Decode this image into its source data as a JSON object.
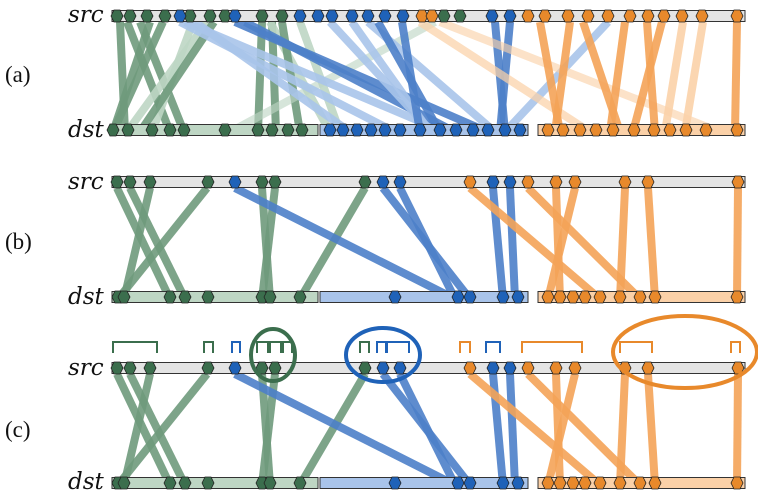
{
  "labels": {
    "src": "src",
    "dst": "dst"
  },
  "colors": {
    "green": "#6f9a7c",
    "green_light": "#bed6c4",
    "green_dark": "#3b6e4d",
    "blue": "#4d7fc9",
    "blue_light": "#a9c4ea",
    "blue_dark": "#1f62b8",
    "orange": "#f4a358",
    "orange_light": "#fbd1a8",
    "orange_dark": "#e8892b",
    "bar": "#e4e4e4",
    "outline": "#333333"
  },
  "panels": [
    {
      "label": "(a)",
      "links": [
        [
          "green",
          120,
          125,
          1
        ],
        [
          "green",
          127,
          170,
          1
        ],
        [
          "green",
          150,
          113,
          1
        ],
        [
          "green",
          140,
          184,
          1
        ],
        [
          "green_light",
          193,
          152,
          1
        ],
        [
          "green",
          163,
          113,
          1
        ],
        [
          "green_light",
          207,
          127,
          1
        ],
        [
          "green",
          214,
          140,
          1
        ],
        [
          "green",
          262,
          258,
          1
        ],
        [
          "green",
          272,
          276,
          1
        ],
        [
          "green_light",
          270,
          330,
          1
        ],
        [
          "green",
          282,
          300,
          1
        ],
        [
          "green_light",
          300,
          340,
          1
        ],
        [
          "green_light",
          435,
          230,
          0.7
        ],
        [
          "blue_light",
          180,
          395,
          1
        ],
        [
          "blue_light",
          185,
          445,
          1
        ],
        [
          "blue",
          235,
          488,
          1
        ],
        [
          "blue_light",
          195,
          350,
          1
        ],
        [
          "blue",
          245,
          455,
          1
        ],
        [
          "blue_light",
          330,
          432,
          1
        ],
        [
          "blue_light",
          352,
          430,
          1
        ],
        [
          "blue_light",
          368,
          495,
          1
        ],
        [
          "blue",
          378,
          440,
          1
        ],
        [
          "blue",
          402,
          420,
          1
        ],
        [
          "blue",
          495,
          505,
          1
        ],
        [
          "blue",
          510,
          500,
          1
        ],
        [
          "blue_light",
          608,
          505,
          1
        ],
        [
          "orange_light",
          420,
          590,
          0.8
        ],
        [
          "orange_light",
          440,
          720,
          0.7
        ],
        [
          "orange",
          540,
          560,
          1
        ],
        [
          "orange",
          570,
          555,
          1
        ],
        [
          "orange",
          583,
          620,
          1
        ],
        [
          "orange",
          625,
          610,
          1
        ],
        [
          "orange",
          647,
          655,
          1
        ],
        [
          "orange",
          662,
          633,
          1
        ],
        [
          "orange_light",
          683,
          665,
          1
        ],
        [
          "orange_light",
          703,
          685,
          1
        ],
        [
          "orange",
          737,
          735,
          1
        ]
      ],
      "src_markers": [
        [
          "green",
          117
        ],
        [
          "green",
          130
        ],
        [
          "green",
          147
        ],
        [
          "green",
          165
        ],
        [
          "green",
          190
        ],
        [
          "green",
          210
        ],
        [
          "green",
          225
        ],
        [
          "green",
          262
        ],
        [
          "green",
          282
        ],
        [
          "blue",
          180
        ],
        [
          "blue",
          235
        ],
        [
          "blue",
          300
        ],
        [
          "blue",
          318
        ],
        [
          "blue",
          332
        ],
        [
          "blue",
          352
        ],
        [
          "blue",
          368
        ],
        [
          "blue",
          385
        ],
        [
          "blue",
          403
        ],
        [
          "orange",
          422
        ],
        [
          "orange",
          432
        ],
        [
          "green",
          444
        ],
        [
          "green",
          460
        ],
        [
          "blue",
          492
        ],
        [
          "blue",
          510
        ],
        [
          "orange",
          528
        ],
        [
          "orange",
          545
        ],
        [
          "orange",
          568
        ],
        [
          "orange",
          588
        ],
        [
          "orange",
          608
        ],
        [
          "orange",
          630
        ],
        [
          "orange",
          648
        ],
        [
          "orange",
          664
        ],
        [
          "orange",
          682
        ],
        [
          "orange",
          702
        ],
        [
          "orange",
          737
        ]
      ],
      "dst_segments": [
        [
          "green_light",
          112,
          318
        ],
        [
          "blue_light",
          320,
          528
        ],
        [
          "orange_light",
          538,
          745
        ]
      ],
      "dst_markers": [
        [
          "green",
          113
        ],
        [
          "green",
          128
        ],
        [
          "green",
          152
        ],
        [
          "green",
          170
        ],
        [
          "green",
          184
        ],
        [
          "green",
          225
        ],
        [
          "green",
          258
        ],
        [
          "green",
          272
        ],
        [
          "green",
          288
        ],
        [
          "green",
          302
        ],
        [
          "blue",
          330
        ],
        [
          "blue",
          343
        ],
        [
          "blue",
          357
        ],
        [
          "blue",
          371
        ],
        [
          "blue",
          385
        ],
        [
          "blue",
          400
        ],
        [
          "blue",
          420
        ],
        [
          "blue",
          440
        ],
        [
          "blue",
          456
        ],
        [
          "blue",
          473
        ],
        [
          "blue",
          488
        ],
        [
          "blue",
          505
        ],
        [
          "blue",
          520
        ],
        [
          "orange",
          548
        ],
        [
          "orange",
          563
        ],
        [
          "orange",
          580
        ],
        [
          "orange",
          596
        ],
        [
          "orange",
          613
        ],
        [
          "orange",
          634
        ],
        [
          "orange",
          654
        ],
        [
          "orange",
          670
        ],
        [
          "orange",
          686
        ],
        [
          "orange",
          706
        ],
        [
          "orange",
          737
        ]
      ]
    },
    {
      "label": "(b)",
      "links": [
        [
          "green",
          117,
          170,
          1
        ],
        [
          "green",
          130,
          185,
          1
        ],
        [
          "green",
          150,
          124,
          1
        ],
        [
          "green",
          207,
          118,
          1
        ],
        [
          "green",
          262,
          270,
          1
        ],
        [
          "green",
          275,
          262,
          1
        ],
        [
          "green",
          365,
          300,
          1
        ],
        [
          "blue",
          235,
          455,
          1
        ],
        [
          "blue",
          383,
          470,
          1
        ],
        [
          "blue",
          400,
          455,
          1
        ],
        [
          "blue",
          493,
          503,
          1
        ],
        [
          "blue",
          510,
          515,
          1
        ],
        [
          "orange",
          470,
          600,
          1
        ],
        [
          "orange",
          528,
          640,
          1
        ],
        [
          "orange",
          556,
          560,
          1
        ],
        [
          "orange",
          575,
          548,
          1
        ],
        [
          "orange",
          625,
          620,
          1
        ],
        [
          "orange",
          648,
          655,
          1
        ],
        [
          "orange",
          738,
          737,
          1
        ]
      ],
      "src_markers": [
        [
          "green",
          117
        ],
        [
          "green",
          130
        ],
        [
          "green",
          150
        ],
        [
          "green",
          208
        ],
        [
          "blue",
          235
        ],
        [
          "green",
          262
        ],
        [
          "green",
          275
        ],
        [
          "green",
          365
        ],
        [
          "blue",
          383
        ],
        [
          "blue",
          400
        ],
        [
          "orange",
          470
        ],
        [
          "blue",
          493
        ],
        [
          "blue",
          510
        ],
        [
          "orange",
          528
        ],
        [
          "orange",
          556
        ],
        [
          "orange",
          575
        ],
        [
          "orange",
          625
        ],
        [
          "orange",
          648
        ],
        [
          "orange",
          738
        ]
      ],
      "dst_segments": [
        [
          "green_light",
          112,
          318
        ],
        [
          "blue_light",
          320,
          528
        ],
        [
          "orange_light",
          538,
          745
        ]
      ],
      "dst_markers": [
        [
          "green",
          118
        ],
        [
          "green",
          124
        ],
        [
          "green",
          170
        ],
        [
          "green",
          185
        ],
        [
          "green",
          208
        ],
        [
          "green",
          262
        ],
        [
          "green",
          270
        ],
        [
          "green",
          300
        ],
        [
          "blue",
          395
        ],
        [
          "blue",
          458
        ],
        [
          "blue",
          470
        ],
        [
          "blue",
          503
        ],
        [
          "blue",
          518
        ],
        [
          "orange",
          548
        ],
        [
          "orange",
          560
        ],
        [
          "orange",
          573
        ],
        [
          "orange",
          585
        ],
        [
          "orange",
          600
        ],
        [
          "orange",
          620
        ],
        [
          "orange",
          640
        ],
        [
          "orange",
          655
        ],
        [
          "orange",
          737
        ]
      ]
    },
    {
      "label": "(c)",
      "links": [
        [
          "green",
          117,
          170,
          1
        ],
        [
          "green",
          130,
          185,
          1
        ],
        [
          "green",
          150,
          124,
          1
        ],
        [
          "green",
          207,
          118,
          1
        ],
        [
          "green",
          262,
          270,
          1
        ],
        [
          "green",
          275,
          262,
          1
        ],
        [
          "green",
          365,
          300,
          1
        ],
        [
          "blue",
          235,
          455,
          1
        ],
        [
          "blue",
          383,
          470,
          1
        ],
        [
          "blue",
          400,
          455,
          1
        ],
        [
          "blue",
          493,
          503,
          1
        ],
        [
          "blue",
          510,
          515,
          1
        ],
        [
          "orange",
          470,
          600,
          1
        ],
        [
          "orange",
          528,
          640,
          1
        ],
        [
          "orange",
          556,
          560,
          1
        ],
        [
          "orange",
          575,
          548,
          1
        ],
        [
          "orange",
          625,
          620,
          1
        ],
        [
          "orange",
          648,
          655,
          1
        ],
        [
          "orange",
          738,
          737,
          1
        ]
      ],
      "src_markers": [
        [
          "green",
          117
        ],
        [
          "green",
          130
        ],
        [
          "green",
          150
        ],
        [
          "green",
          208
        ],
        [
          "blue",
          235
        ],
        [
          "green",
          262
        ],
        [
          "green",
          275
        ],
        [
          "green",
          365
        ],
        [
          "blue",
          383
        ],
        [
          "blue",
          400
        ],
        [
          "orange",
          470
        ],
        [
          "blue",
          493
        ],
        [
          "blue",
          510
        ],
        [
          "orange",
          528
        ],
        [
          "orange",
          556
        ],
        [
          "orange",
          575
        ],
        [
          "orange",
          625
        ],
        [
          "orange",
          648
        ],
        [
          "orange",
          738
        ]
      ],
      "dst_segments": [
        [
          "green_light",
          112,
          318
        ],
        [
          "blue_light",
          320,
          528
        ],
        [
          "orange_light",
          538,
          745
        ]
      ],
      "dst_markers": [
        [
          "green",
          118
        ],
        [
          "green",
          124
        ],
        [
          "green",
          170
        ],
        [
          "green",
          185
        ],
        [
          "green",
          208
        ],
        [
          "green",
          262
        ],
        [
          "green",
          270
        ],
        [
          "green",
          300
        ],
        [
          "blue",
          395
        ],
        [
          "blue",
          458
        ],
        [
          "blue",
          470
        ],
        [
          "blue",
          503
        ],
        [
          "blue",
          518
        ],
        [
          "orange",
          548
        ],
        [
          "orange",
          560
        ],
        [
          "orange",
          573
        ],
        [
          "orange",
          585
        ],
        [
          "orange",
          600
        ],
        [
          "orange",
          620
        ],
        [
          "orange",
          640
        ],
        [
          "orange",
          655
        ],
        [
          "orange",
          737
        ]
      ],
      "brackets": [
        [
          "green",
          113,
          157
        ],
        [
          "green",
          204,
          213
        ],
        [
          "blue",
          232,
          240
        ],
        [
          "green",
          257,
          268
        ],
        [
          "green",
          270,
          281
        ],
        [
          "green",
          283,
          292
        ],
        [
          "green",
          360,
          369
        ],
        [
          "blue",
          377,
          386
        ],
        [
          "blue",
          387,
          409
        ],
        [
          "orange",
          460,
          470
        ],
        [
          "blue",
          486,
          500
        ],
        [
          "orange",
          522,
          582
        ],
        [
          "orange",
          620,
          652
        ],
        [
          "orange",
          731,
          740
        ]
      ],
      "ellipses": [
        [
          "green_dark",
          273,
          355,
          22,
          26
        ],
        [
          "blue_dark",
          383,
          355,
          37,
          27
        ],
        [
          "orange_dark",
          685,
          352,
          72,
          36
        ]
      ]
    }
  ]
}
